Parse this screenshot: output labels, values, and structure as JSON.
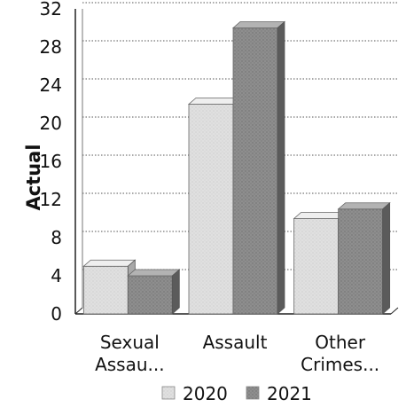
{
  "chart_data": {
    "type": "bar",
    "categories": [
      "Sexual\nAssau...",
      "Assault",
      "Other\nCrimes..."
    ],
    "series": [
      {
        "name": "2020",
        "values": [
          5,
          22,
          10
        ],
        "color": "#d9d9d9"
      },
      {
        "name": "2021",
        "values": [
          4,
          30,
          11
        ],
        "color": "#8f8f8f"
      }
    ],
    "title": "",
    "xlabel": "",
    "ylabel": "Actual",
    "ylim": [
      0,
      32
    ],
    "yticks": [
      "0",
      "4",
      "8",
      "12",
      "16",
      "20",
      "24",
      "28",
      "32"
    ],
    "grid": true,
    "legend_position": "bottom",
    "style": "3d-shaded"
  }
}
